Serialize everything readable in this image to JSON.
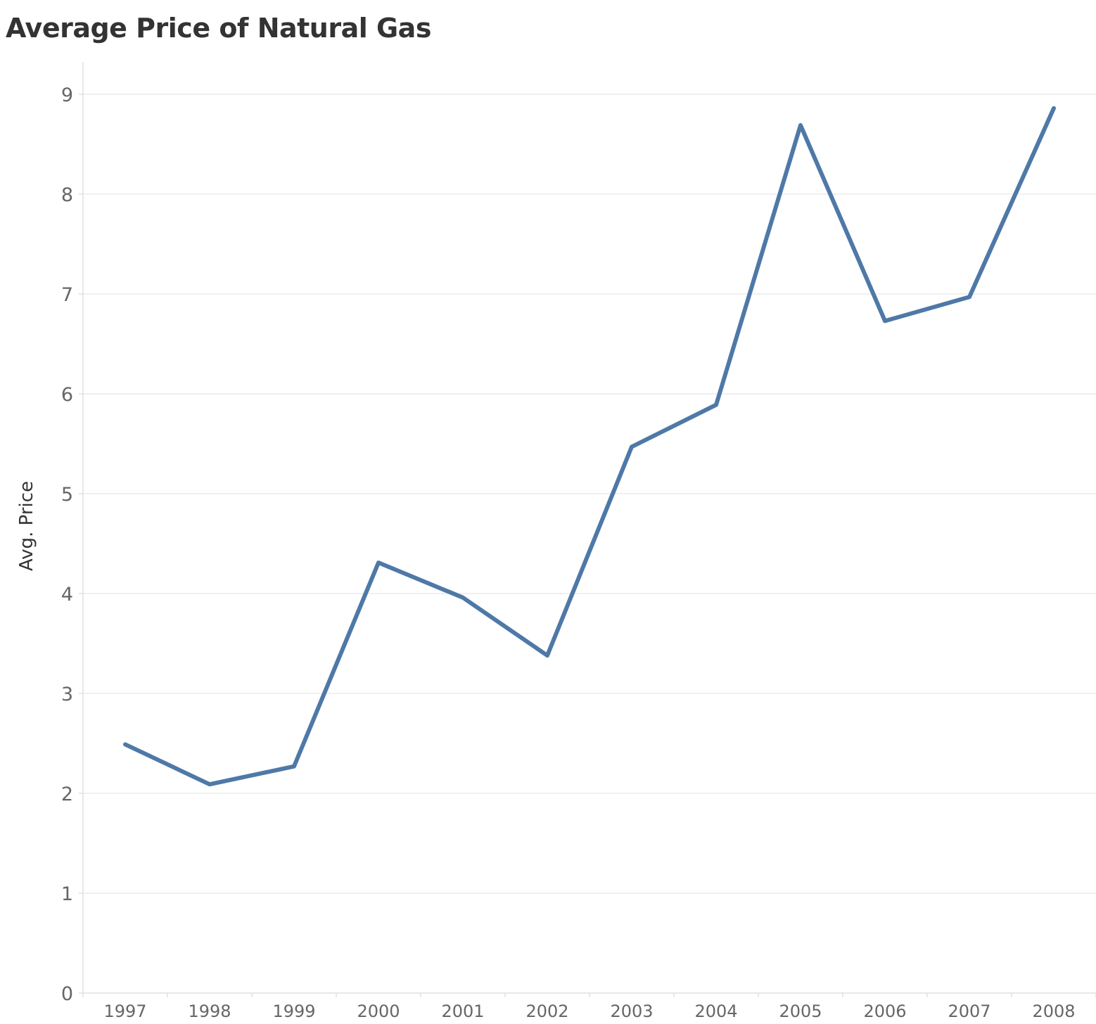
{
  "chart_data": {
    "type": "line",
    "title": "Average Price of Natural Gas",
    "xlabel": "",
    "ylabel": "Avg. Price",
    "x": [
      "1997",
      "1998",
      "1999",
      "2000",
      "2001",
      "2002",
      "2003",
      "2004",
      "2005",
      "2006",
      "2007",
      "2008"
    ],
    "series": [
      {
        "values": [
          2.49,
          2.09,
          2.27,
          4.31,
          3.96,
          3.38,
          5.47,
          5.89,
          8.69,
          6.73,
          6.97,
          8.86
        ]
      }
    ],
    "ylim": [
      0,
      9
    ],
    "yticks": [
      "0",
      "1",
      "2",
      "3",
      "4",
      "5",
      "6",
      "7",
      "8",
      "9"
    ],
    "grid": true,
    "legend": "none",
    "colors": {
      "line": "#4e79a7",
      "grid": "#ececec",
      "axis": "#e0e0e0"
    }
  }
}
